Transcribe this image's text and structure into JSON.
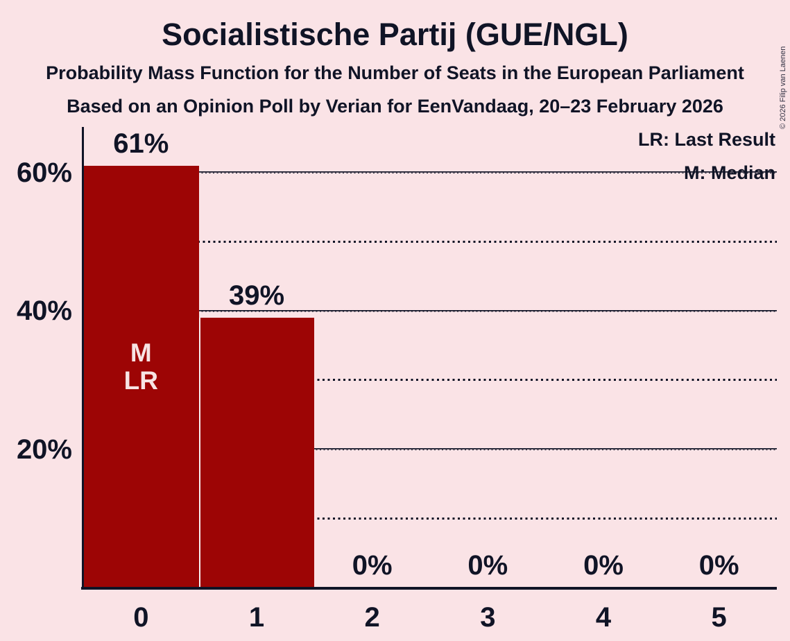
{
  "page": {
    "background_color": "#fae3e6",
    "text_color": "#101426"
  },
  "chart_data": {
    "type": "bar",
    "title": "Socialistische Partij (GUE/NGL)",
    "subtitle1": "Probability Mass Function for the Number of Seats in the European Parliament",
    "subtitle2": "Based on an Opinion Poll by Verian for EenVandaag, 20–23 February 2026",
    "legend": [
      "LR: Last Result",
      "M: Median"
    ],
    "legend_position": "top-right",
    "categories": [
      "0",
      "1",
      "2",
      "3",
      "4",
      "5"
    ],
    "values": [
      61,
      39,
      0,
      0,
      0,
      0
    ],
    "value_labels": [
      "61%",
      "39%",
      "0%",
      "0%",
      "0%",
      "0%"
    ],
    "xlabel": "",
    "ylabel": "",
    "ylim": [
      0,
      66.5
    ],
    "ytick_values": [
      20,
      40,
      60
    ],
    "ytick_labels": [
      "20%",
      "40%",
      "60%"
    ],
    "gridlines": {
      "dashed_at": [
        20,
        40,
        60
      ],
      "dotted_at": [
        10,
        30,
        50
      ]
    },
    "bar_annotations": [
      {
        "index": 0,
        "lines": [
          "M",
          "LR"
        ]
      }
    ],
    "bar_color": "#9d0505",
    "bar_separator_color": "#f8eef0",
    "annotation_text_color": "#f7e4e4",
    "copyright": "© 2026 Filip van Laenen"
  }
}
